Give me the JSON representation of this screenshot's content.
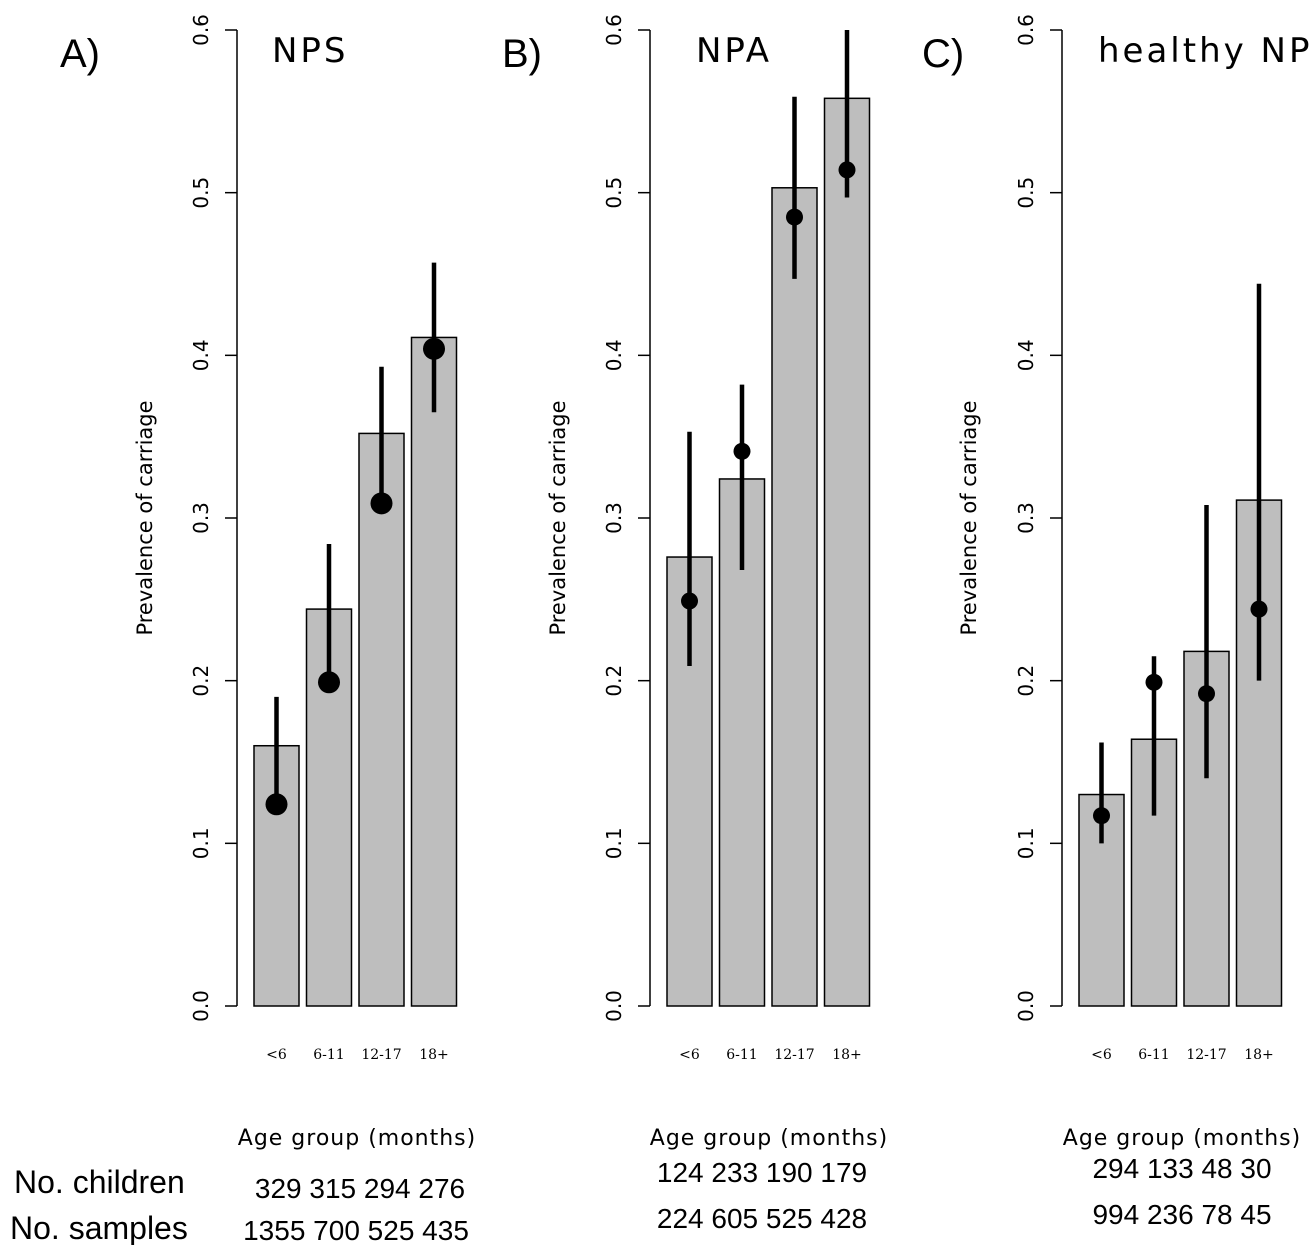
{
  "colors": {
    "bar_fill": "#bebebe",
    "bar_stroke": "#000000",
    "point": "#000000",
    "error_bar": "#000000",
    "axis": "#000000"
  },
  "row_labels": {
    "children": "No. children",
    "samples": "No. samples"
  },
  "chart_data": [
    {
      "type": "bar",
      "panel": "A)",
      "title": "NPS",
      "xlabel": "Age group (months)",
      "ylabel": "Prevalence of carriage",
      "ylim": [
        0,
        0.6
      ],
      "yticks": [
        0.0,
        0.1,
        0.2,
        0.3,
        0.4,
        0.5,
        0.6
      ],
      "ytick_labels": [
        "0.0",
        "0.1",
        "0.2",
        "0.3",
        "0.4",
        "0.5",
        "0.6"
      ],
      "grid": false,
      "categories": [
        "<6",
        "6-11",
        "12-17",
        "18+"
      ],
      "values": [
        0.16,
        0.244,
        0.352,
        0.411
      ],
      "points": [
        0.124,
        0.199,
        0.309,
        0.404
      ],
      "ci_low": [
        0.123,
        0.199,
        0.309,
        0.365
      ],
      "ci_high": [
        0.19,
        0.284,
        0.393,
        0.457
      ],
      "children_text": "329 315 294 276",
      "samples_text": "1355 700 525 435"
    },
    {
      "type": "bar",
      "panel": "B)",
      "title": "NPA",
      "xlabel": "Age group (months)",
      "ylabel": "Prevalence of carriage",
      "ylim": [
        0,
        0.6
      ],
      "yticks": [
        0.0,
        0.1,
        0.2,
        0.3,
        0.4,
        0.5,
        0.6
      ],
      "ytick_labels": [
        "0.0",
        "0.1",
        "0.2",
        "0.3",
        "0.4",
        "0.5",
        "0.6"
      ],
      "grid": false,
      "categories": [
        "<6",
        "6-11",
        "12-17",
        "18+"
      ],
      "values": [
        0.276,
        0.324,
        0.503,
        0.558
      ],
      "points": [
        0.249,
        0.341,
        0.485,
        0.514
      ],
      "ci_low": [
        0.209,
        0.268,
        0.447,
        0.497
      ],
      "ci_high": [
        0.353,
        0.382,
        0.559,
        0.6
      ],
      "children_text": "124 233 190 179",
      "samples_text": "224 605 525 428"
    },
    {
      "type": "bar",
      "panel": "C)",
      "title": "healthy NPS",
      "xlabel": "Age group (months)",
      "ylabel": "Prevalence of carriage",
      "ylim": [
        0,
        0.6
      ],
      "yticks": [
        0.0,
        0.1,
        0.2,
        0.3,
        0.4,
        0.5,
        0.6
      ],
      "ytick_labels": [
        "0.0",
        "0.1",
        "0.2",
        "0.3",
        "0.4",
        "0.5",
        "0.6"
      ],
      "grid": false,
      "categories": [
        "<6",
        "6-11",
        "12-17",
        "18+"
      ],
      "values": [
        0.13,
        0.164,
        0.218,
        0.311
      ],
      "points": [
        0.117,
        0.199,
        0.192,
        0.244
      ],
      "ci_low": [
        0.1,
        0.117,
        0.14,
        0.2
      ],
      "ci_high": [
        0.162,
        0.215,
        0.308,
        0.444
      ],
      "children_text": "294 133 48 30",
      "samples_text": "994 236 78 45"
    }
  ]
}
